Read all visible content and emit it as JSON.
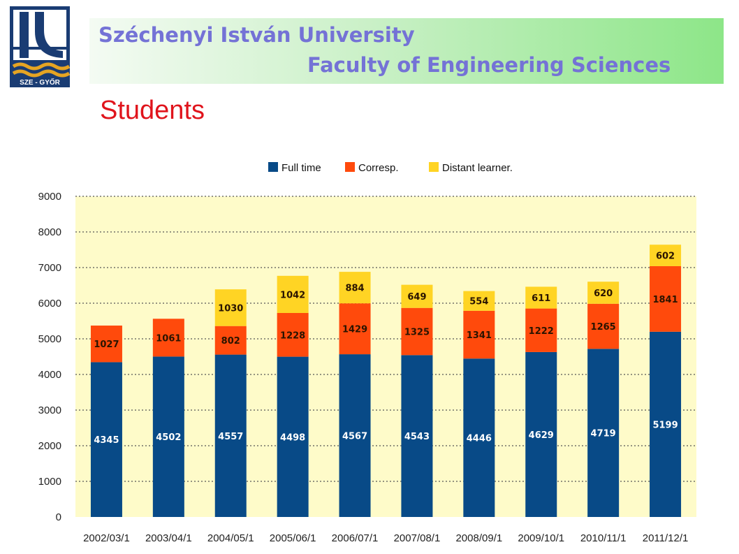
{
  "header": {
    "university": "Széchenyi István University",
    "faculty": "Faculty of Engineering Sciences",
    "title": "Students"
  },
  "logo": {
    "name": "sze-gyor-logo",
    "text": "SZE - GYŐR",
    "colors": {
      "navy": "#1a3c73",
      "gold": "#e5a423"
    }
  },
  "colors": {
    "plot_background": "#fefbc9",
    "gridline": "#555555"
  },
  "chart_data": {
    "type": "bar",
    "stacked": true,
    "categories": [
      "2002/03/1",
      "2003/04/1",
      "2004/05/1",
      "2005/06/1",
      "2006/07/1",
      "2007/08/1",
      "2008/09/1",
      "2009/10/1",
      "2010/11/1",
      "2011/12/1"
    ],
    "series": [
      {
        "name": "Full time",
        "color": "#084a87",
        "label_color": "#ffffff",
        "values": [
          4345,
          4502,
          4557,
          4498,
          4567,
          4543,
          4446,
          4629,
          4719,
          5199
        ]
      },
      {
        "name": "Corresp.",
        "color": "#ff4a0c",
        "label_color": "#2a1400",
        "values": [
          1027,
          1061,
          802,
          1228,
          1429,
          1325,
          1341,
          1222,
          1265,
          1841
        ]
      },
      {
        "name": "Distant learner.",
        "color": "#ffd424",
        "label_color": "#2a1400",
        "values": [
          null,
          null,
          1030,
          1042,
          884,
          649,
          554,
          611,
          620,
          602
        ]
      }
    ],
    "yticks": [
      0,
      1000,
      2000,
      3000,
      4000,
      5000,
      6000,
      7000,
      8000,
      9000
    ],
    "ylim": [
      0,
      9000
    ],
    "grid": true,
    "legend_position": "top"
  }
}
